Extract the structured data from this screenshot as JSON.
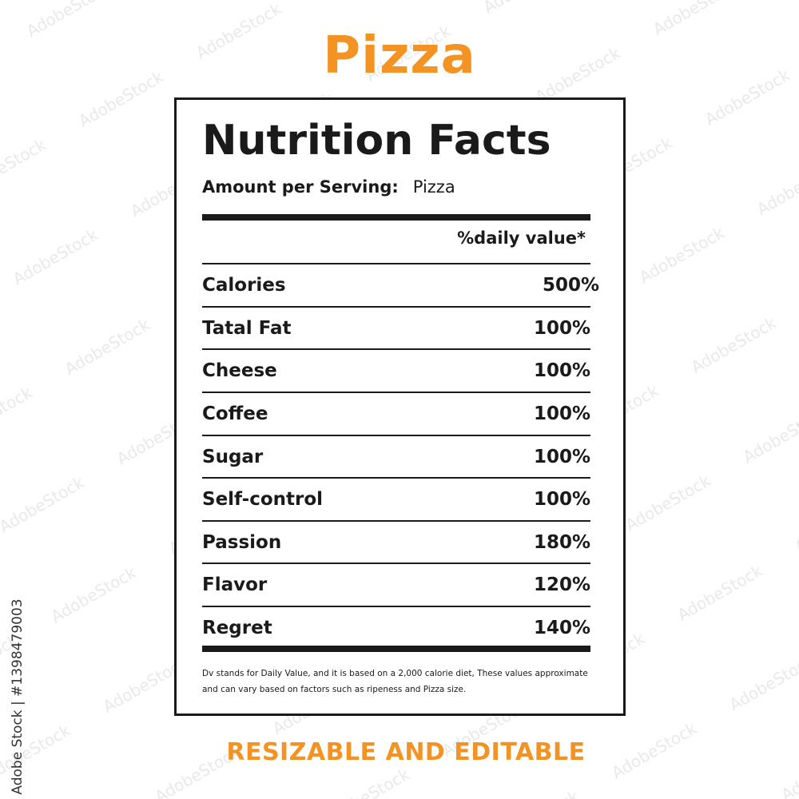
{
  "header": {
    "title": "Pizza"
  },
  "label": {
    "title": "Nutrition Facts",
    "serving_label": "Amount per Serving:",
    "serving_value": "Pizza",
    "daily_value_header": "%daily value*",
    "rows": [
      {
        "name": "Calories",
        "value": "500%"
      },
      {
        "name": "Tatal Fat",
        "value": "100%"
      },
      {
        "name": "Cheese",
        "value": "100%"
      },
      {
        "name": "Coffee",
        "value": "100%"
      },
      {
        "name": "Sugar",
        "value": "100%"
      },
      {
        "name": "Self-control",
        "value": "100%"
      },
      {
        "name": "Passion",
        "value": "180%"
      },
      {
        "name": "Flavor",
        "value": "120%"
      },
      {
        "name": "Regret",
        "value": "140%"
      }
    ],
    "footnote_line1": "Dv stands for Daily Value, and it is based on a 2,000 calorie diet, These values approximate",
    "footnote_line2": "and can vary based on factors such as ripeness and  Pizza size."
  },
  "footer": {
    "caption": "RESIZABLE AND EDITABLE"
  },
  "stock": {
    "id_text": "Adobe Stock | #1398479003"
  },
  "colors": {
    "accent": "#f39323",
    "ink": "#1a1a1a",
    "background": "#ffffff"
  }
}
